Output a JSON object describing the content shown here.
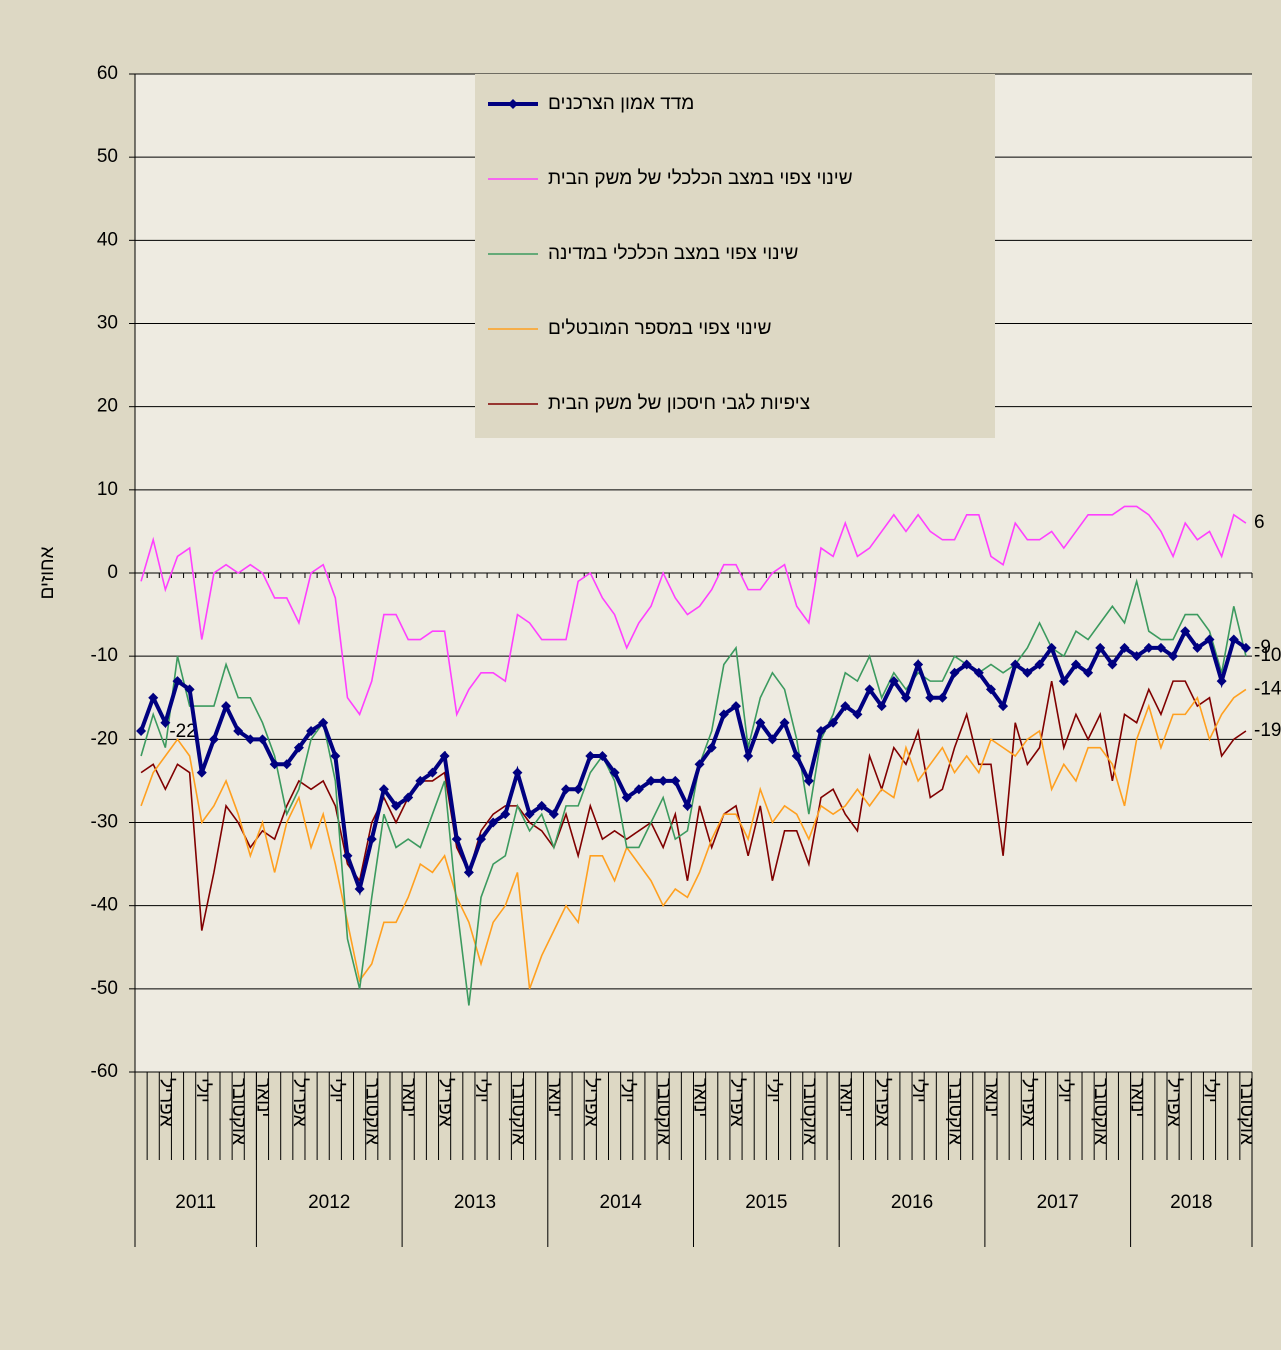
{
  "chart_data": {
    "type": "line",
    "y_label": "אחוזים",
    "categories": [
      "",
      null,
      "אפריל",
      null,
      null,
      "יולי",
      null,
      null,
      "אוקטובר",
      null,
      "ינואר",
      null,
      null,
      "אפריל",
      null,
      null,
      "יולי",
      null,
      null,
      "אוקטובר",
      null,
      null,
      "ינואר",
      null,
      null,
      "אפריל",
      null,
      null,
      "יולי",
      null,
      null,
      "אוקטובר",
      null,
      null,
      "ינואר",
      null,
      null,
      "אפריל",
      null,
      null,
      "יולי",
      null,
      null,
      "אוקטובר",
      null,
      null,
      "ינואר",
      null,
      null,
      "אפריל",
      null,
      null,
      "יולי",
      null,
      null,
      "אוקטובר",
      null,
      null,
      "ינואר",
      null,
      null,
      "אפריל",
      null,
      null,
      "יולי",
      null,
      null,
      "אוקטובר",
      null,
      null,
      "ינואר",
      null,
      null,
      "אפריל",
      null,
      null,
      "יולי",
      null,
      null,
      "אוקטובר",
      null,
      null,
      "ינואר",
      null,
      null,
      "אפריל",
      null,
      null,
      "יולי",
      null,
      null,
      "אוקטובר"
    ],
    "groups": [
      {
        "label": "2011",
        "count": 10
      },
      {
        "label": "2012",
        "count": 12
      },
      {
        "label": "2013",
        "count": 12
      },
      {
        "label": "2014",
        "count": 12
      },
      {
        "label": "2015",
        "count": 12
      },
      {
        "label": "2016",
        "count": 12
      },
      {
        "label": "2017",
        "count": 12
      },
      {
        "label": "2018",
        "count": 10
      }
    ],
    "ylim": [
      -60,
      60
    ],
    "yticks": [
      -60,
      -50,
      -40,
      -30,
      -20,
      -10,
      0,
      10,
      20,
      30,
      40,
      50,
      60
    ],
    "grid": true,
    "series": [
      {
        "name": "מדד אמון הצרכנים",
        "color": "#000080",
        "marker": "diamond",
        "values": [
          -19,
          -15,
          -18,
          -13,
          -14,
          -24,
          -20,
          -16,
          -19,
          -20,
          -20,
          -23,
          -23,
          -21,
          -19,
          -18,
          -22,
          -34,
          -38,
          -32,
          -26,
          -28,
          -27,
          -25,
          -24,
          -22,
          -32,
          -36,
          -32,
          -30,
          -29,
          -24,
          -29,
          -28,
          -29,
          -26,
          -26,
          -22,
          -22,
          -24,
          -27,
          -26,
          -25,
          -25,
          -25,
          -28,
          -23,
          -21,
          -17,
          -16,
          -22,
          -18,
          -20,
          -18,
          -22,
          -25,
          -19,
          -18,
          -16,
          -17,
          -14,
          -16,
          -13,
          -15,
          -11,
          -15,
          -15,
          -12,
          -11,
          -12,
          -14,
          -16,
          -11,
          -12,
          -11,
          -9,
          -13,
          -11,
          -12,
          -9,
          -11,
          -9,
          -10,
          -9,
          -9,
          -10,
          -7,
          -9,
          -8,
          -13,
          -8,
          -9
        ],
        "value_labels": [
          null,
          null,
          null,
          null,
          null,
          null,
          null,
          null,
          null,
          null,
          null,
          null,
          null,
          null,
          null,
          null,
          null,
          null,
          null,
          null,
          null,
          null,
          null,
          null,
          null,
          null,
          null,
          null,
          null,
          null,
          null,
          null,
          null,
          null,
          null,
          null,
          null,
          null,
          null,
          null,
          null,
          null,
          null,
          null,
          null,
          null,
          null,
          null,
          null,
          null,
          null,
          null,
          null,
          null,
          null,
          null,
          null,
          null,
          null,
          null,
          null,
          null,
          null,
          null,
          null,
          null,
          null,
          null,
          null,
          null,
          null,
          null,
          null,
          null,
          null,
          null,
          null,
          null,
          null,
          null,
          null,
          null,
          null,
          null,
          null,
          null,
          null,
          null,
          null,
          null,
          null,
          "-9"
        ]
      },
      {
        "name": "שינוי  צפוי  במצב הכלכלי  של משק הבית",
        "color": "#ff40ff",
        "values": [
          -1,
          4,
          -2,
          2,
          3,
          -8,
          0,
          1,
          0,
          1,
          0,
          -3,
          -3,
          -6,
          0,
          1,
          -3,
          -15,
          -17,
          -13,
          -5,
          -5,
          -8,
          -8,
          -7,
          -7,
          -17,
          -14,
          -12,
          -12,
          -13,
          -5,
          -6,
          -8,
          -8,
          -8,
          -1,
          0,
          -3,
          -5,
          -9,
          -6,
          -4,
          0,
          -3,
          -5,
          -4,
          -2,
          1,
          1,
          -2,
          -2,
          0,
          1,
          -4,
          -6,
          3,
          2,
          6,
          2,
          3,
          5,
          7,
          5,
          7,
          5,
          4,
          4,
          7,
          7,
          2,
          1,
          6,
          4,
          4,
          5,
          3,
          5,
          7,
          7,
          7,
          8,
          8,
          7,
          5,
          2,
          6,
          4,
          5,
          2,
          7,
          6
        ],
        "value_labels": [
          null,
          null,
          null,
          null,
          null,
          null,
          null,
          null,
          null,
          null,
          null,
          null,
          null,
          null,
          null,
          null,
          null,
          null,
          null,
          null,
          null,
          null,
          null,
          null,
          null,
          null,
          null,
          null,
          null,
          null,
          null,
          null,
          null,
          null,
          null,
          null,
          null,
          null,
          null,
          null,
          null,
          null,
          null,
          null,
          null,
          null,
          null,
          null,
          null,
          null,
          null,
          null,
          null,
          null,
          null,
          null,
          null,
          null,
          null,
          null,
          null,
          null,
          null,
          null,
          null,
          null,
          null,
          null,
          null,
          null,
          null,
          null,
          null,
          null,
          null,
          null,
          null,
          null,
          null,
          null,
          null,
          null,
          null,
          null,
          null,
          null,
          null,
          null,
          null,
          null,
          null,
          "6"
        ]
      },
      {
        "name": "שינוי  צפוי  במצב הכלכלי  במדינה",
        "color": "#3c9a5f",
        "values": [
          -22,
          -17,
          -21,
          -10,
          -16,
          -16,
          -16,
          -11,
          -15,
          -15,
          -18,
          -22,
          -29,
          -26,
          -20,
          -18,
          -25,
          -44,
          -50,
          -39,
          -29,
          -33,
          -32,
          -33,
          -29,
          -25,
          -40,
          -52,
          -39,
          -35,
          -34,
          -28,
          -31,
          -29,
          -33,
          -28,
          -28,
          -24,
          -22,
          -25,
          -33,
          -33,
          -30,
          -27,
          -32,
          -31,
          -23,
          -19,
          -11,
          -9,
          -21,
          -15,
          -12,
          -14,
          -20,
          -29,
          -20,
          -17,
          -12,
          -13,
          -10,
          -15,
          -12,
          -14,
          -12,
          -13,
          -13,
          -10,
          -11,
          -12,
          -11,
          -12,
          -11,
          -9,
          -6,
          -9,
          -10,
          -7,
          -8,
          -6,
          -4,
          -6,
          -1,
          -7,
          -8,
          -8,
          -5,
          -5,
          -7,
          -12,
          -4,
          -10
        ],
        "value_labels": [
          null,
          null,
          null,
          null,
          null,
          null,
          null,
          null,
          null,
          null,
          null,
          null,
          null,
          null,
          null,
          null,
          null,
          null,
          null,
          null,
          null,
          null,
          null,
          null,
          null,
          null,
          null,
          null,
          null,
          null,
          null,
          null,
          null,
          null,
          null,
          null,
          null,
          null,
          null,
          null,
          null,
          null,
          null,
          null,
          null,
          null,
          null,
          null,
          null,
          null,
          null,
          null,
          null,
          null,
          null,
          null,
          null,
          null,
          null,
          null,
          null,
          null,
          null,
          null,
          null,
          null,
          null,
          null,
          null,
          null,
          null,
          null,
          null,
          null,
          null,
          null,
          null,
          null,
          null,
          null,
          null,
          null,
          null,
          null,
          null,
          null,
          null,
          null,
          null,
          null,
          null,
          "-10"
        ]
      },
      {
        "name": "שינוי  צפוי  במספר המובטלים",
        "color": "#ffa020",
        "values": [
          -28,
          -24,
          -22,
          -20,
          -22,
          -30,
          -28,
          -25,
          -29,
          -34,
          -30,
          -36,
          -30,
          -27,
          -33,
          -29,
          -35,
          -42,
          -49,
          -47,
          -42,
          -42,
          -39,
          -35,
          -36,
          -34,
          -39,
          -42,
          -47,
          -42,
          -40,
          -36,
          -50,
          -46,
          -43,
          -40,
          -42,
          -34,
          -34,
          -37,
          -33,
          -35,
          -37,
          -40,
          -38,
          -39,
          -36,
          -32,
          -29,
          -29,
          -32,
          -26,
          -30,
          -28,
          -29,
          -32,
          -28,
          -29,
          -28,
          -26,
          -28,
          -26,
          -27,
          -21,
          -25,
          -23,
          -21,
          -24,
          -22,
          -24,
          -20,
          -21,
          -22,
          -20,
          -19,
          -26,
          -23,
          -25,
          -21,
          -21,
          -23,
          -28,
          -20,
          -16,
          -21,
          -17,
          -17,
          -15,
          -20,
          -17,
          -15,
          -14
        ],
        "value_labels": [
          null,
          null,
          "-22",
          null,
          null,
          null,
          null,
          null,
          null,
          null,
          null,
          null,
          null,
          null,
          null,
          null,
          null,
          null,
          null,
          null,
          null,
          null,
          null,
          null,
          null,
          null,
          null,
          null,
          null,
          null,
          null,
          null,
          null,
          null,
          null,
          null,
          null,
          null,
          null,
          null,
          null,
          null,
          null,
          null,
          null,
          null,
          null,
          null,
          null,
          null,
          null,
          null,
          null,
          null,
          null,
          null,
          null,
          null,
          null,
          null,
          null,
          null,
          null,
          null,
          null,
          null,
          null,
          null,
          null,
          null,
          null,
          null,
          null,
          null,
          null,
          null,
          null,
          null,
          null,
          null,
          null,
          null,
          null,
          null,
          null,
          null,
          null,
          null,
          null,
          null,
          null,
          "-14"
        ]
      },
      {
        "name": "ציפיות  לגבי  חיסכון  של משק הבית",
        "color": "#800000",
        "values": [
          -24,
          -23,
          -26,
          -23,
          -24,
          -43,
          -36,
          -28,
          -30,
          -33,
          -31,
          -32,
          -28,
          -25,
          -26,
          -25,
          -28,
          -35,
          -37,
          -30,
          -27,
          -30,
          -27,
          -25,
          -25,
          -24,
          -33,
          -36,
          -31,
          -29,
          -28,
          -28,
          -30,
          -31,
          -33,
          -29,
          -34,
          -28,
          -32,
          -31,
          -32,
          -31,
          -30,
          -33,
          -29,
          -37,
          -28,
          -33,
          -29,
          -28,
          -34,
          -28,
          -37,
          -31,
          -31,
          -35,
          -27,
          -26,
          -29,
          -31,
          -22,
          -26,
          -21,
          -23,
          -19,
          -27,
          -26,
          -21,
          -17,
          -23,
          -23,
          -34,
          -18,
          -23,
          -21,
          -13,
          -21,
          -17,
          -20,
          -17,
          -25,
          -17,
          -18,
          -14,
          -17,
          -13,
          -13,
          -16,
          -15,
          -22,
          -20,
          -19
        ],
        "value_labels": [
          null,
          null,
          null,
          null,
          null,
          null,
          null,
          null,
          null,
          null,
          null,
          null,
          null,
          null,
          null,
          null,
          null,
          null,
          null,
          null,
          null,
          null,
          null,
          null,
          null,
          null,
          null,
          null,
          null,
          null,
          null,
          null,
          null,
          null,
          null,
          null,
          null,
          null,
          null,
          null,
          null,
          null,
          null,
          null,
          null,
          null,
          null,
          null,
          null,
          null,
          null,
          null,
          null,
          null,
          null,
          null,
          null,
          null,
          null,
          null,
          null,
          null,
          null,
          null,
          null,
          null,
          null,
          null,
          null,
          null,
          null,
          null,
          null,
          null,
          null,
          null,
          null,
          null,
          null,
          null,
          null,
          null,
          null,
          null,
          null,
          null,
          null,
          null,
          null,
          null,
          null,
          "-19"
        ]
      }
    ]
  }
}
